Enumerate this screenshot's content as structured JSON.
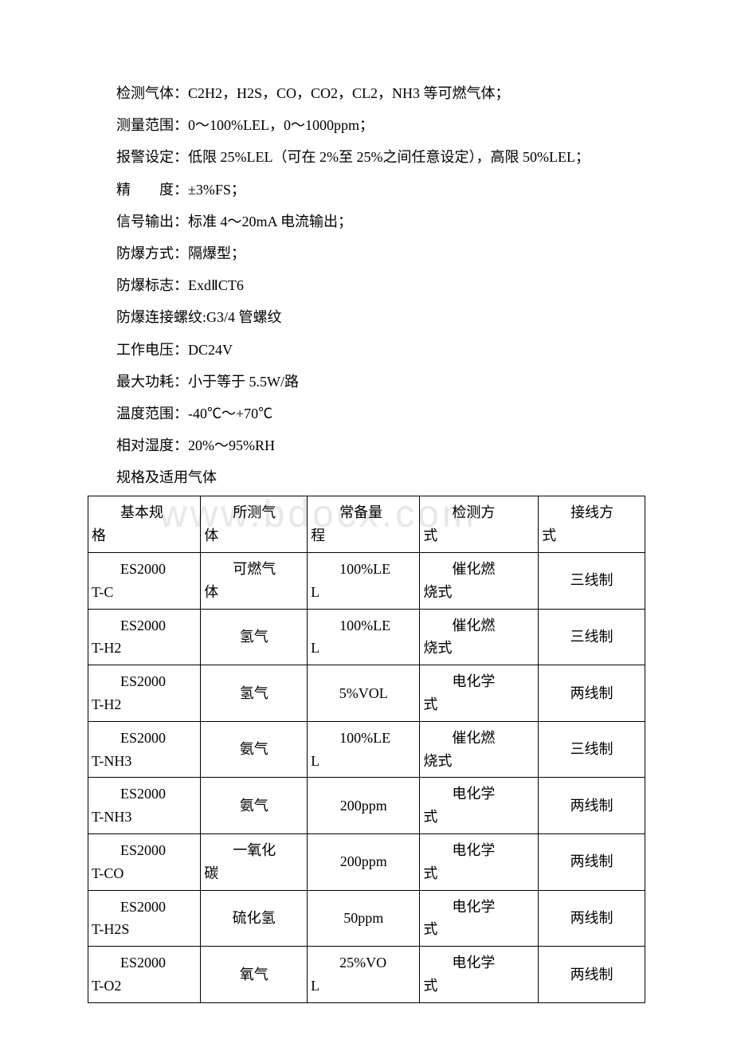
{
  "watermark": "www.bdocx.com",
  "specs": [
    "检测气体：C2H2，H2S，CO，CO2，CL2，NH3 等可燃气体；",
    "测量范围：0～100%LEL，0～1000ppm；",
    "报警设定：低限 25%LEL（可在 2%至 25%之间任意设定），高限 50%LEL；",
    "精　　度：±3%FS；",
    "信号输出：标准 4～20mA 电流输出；",
    "防爆方式：隔爆型；",
    "防爆标志：ExdⅡCT6",
    "防爆连接螺纹:G3/4 管螺纹",
    "工作电压：DC24V",
    "最大功耗：小于等于 5.5W/路",
    "温度范围：-40℃～+70℃",
    "相对湿度：20%～95%RH",
    "规格及适用气体"
  ],
  "table": {
    "header": {
      "c1a": "基本规",
      "c1b": "格",
      "c2a": "所测气",
      "c2b": "体",
      "c3a": "常备量",
      "c3b": "程",
      "c4a": "检测方",
      "c4b": "式",
      "c5a": "接线方",
      "c5b": "式"
    },
    "rows": [
      {
        "c1a": "ES2000",
        "c1b": "T-C",
        "c2a": "可燃气",
        "c2b": "体",
        "c3a": "100%LE",
        "c3b": "L",
        "c4a": "催化燃",
        "c4b": "烧式",
        "c5": "三线制"
      },
      {
        "c1a": "ES2000",
        "c1b": "T-H2",
        "c2": "氢气",
        "c3a": "100%LE",
        "c3b": "L",
        "c4a": "催化燃",
        "c4b": "烧式",
        "c5": "三线制"
      },
      {
        "c1a": "ES2000",
        "c1b": "T-H2",
        "c2": "氢气",
        "c3": "5%VOL",
        "c4a": "电化学",
        "c4b": "式",
        "c5": "两线制"
      },
      {
        "c1a": "ES2000",
        "c1b": "T-NH3",
        "c2": "氨气",
        "c3a": "100%LE",
        "c3b": "L",
        "c4a": "催化燃",
        "c4b": "烧式",
        "c5": "三线制"
      },
      {
        "c1a": "ES2000",
        "c1b": "T-NH3",
        "c2": "氨气",
        "c3": "200ppm",
        "c4a": "电化学",
        "c4b": "式",
        "c5": "两线制"
      },
      {
        "c1a": "ES2000",
        "c1b": "T-CO",
        "c2a": "一氧化",
        "c2b": "碳",
        "c3": "200ppm",
        "c4a": "电化学",
        "c4b": "式",
        "c5": "两线制"
      },
      {
        "c1a": "ES2000",
        "c1b": "T-H2S",
        "c2": "硫化氢",
        "c3": "50ppm",
        "c4a": "电化学",
        "c4b": "式",
        "c5": "两线制"
      },
      {
        "c1a": "ES2000",
        "c1b": "T-O2",
        "c2": "氧气",
        "c3a": "25%VO",
        "c3b": "L",
        "c4a": "电化学",
        "c4b": "式",
        "c5": "两线制"
      }
    ]
  }
}
